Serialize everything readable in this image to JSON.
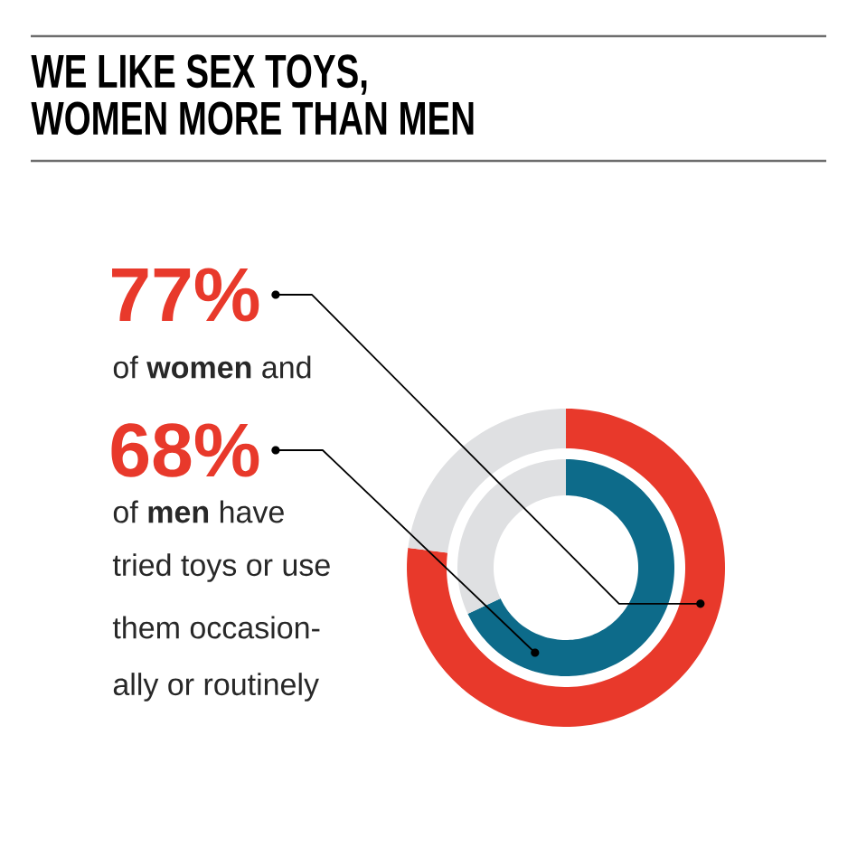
{
  "chart_data": {
    "type": "donut",
    "title": "WE LIKE SEX TOYS, WOMEN MORE THAN MEN",
    "categories": [
      null,
      null
    ],
    "series": [
      {
        "values": [
          77,
          23
        ],
        "colors": [
          "#e8392b",
          "#dfe0e2"
        ],
        "value_labels": [
          "77%",
          null
        ]
      },
      {
        "values": [
          68,
          32
        ],
        "colors": [
          "#0d6b8a",
          "#dfe0e2"
        ],
        "value_labels": [
          "68%",
          null
        ]
      }
    ],
    "annotations": [
      "of **women** and",
      "of **men** have",
      "tried toys or use",
      "them occasion-",
      "ally or routinely"
    ]
  }
}
